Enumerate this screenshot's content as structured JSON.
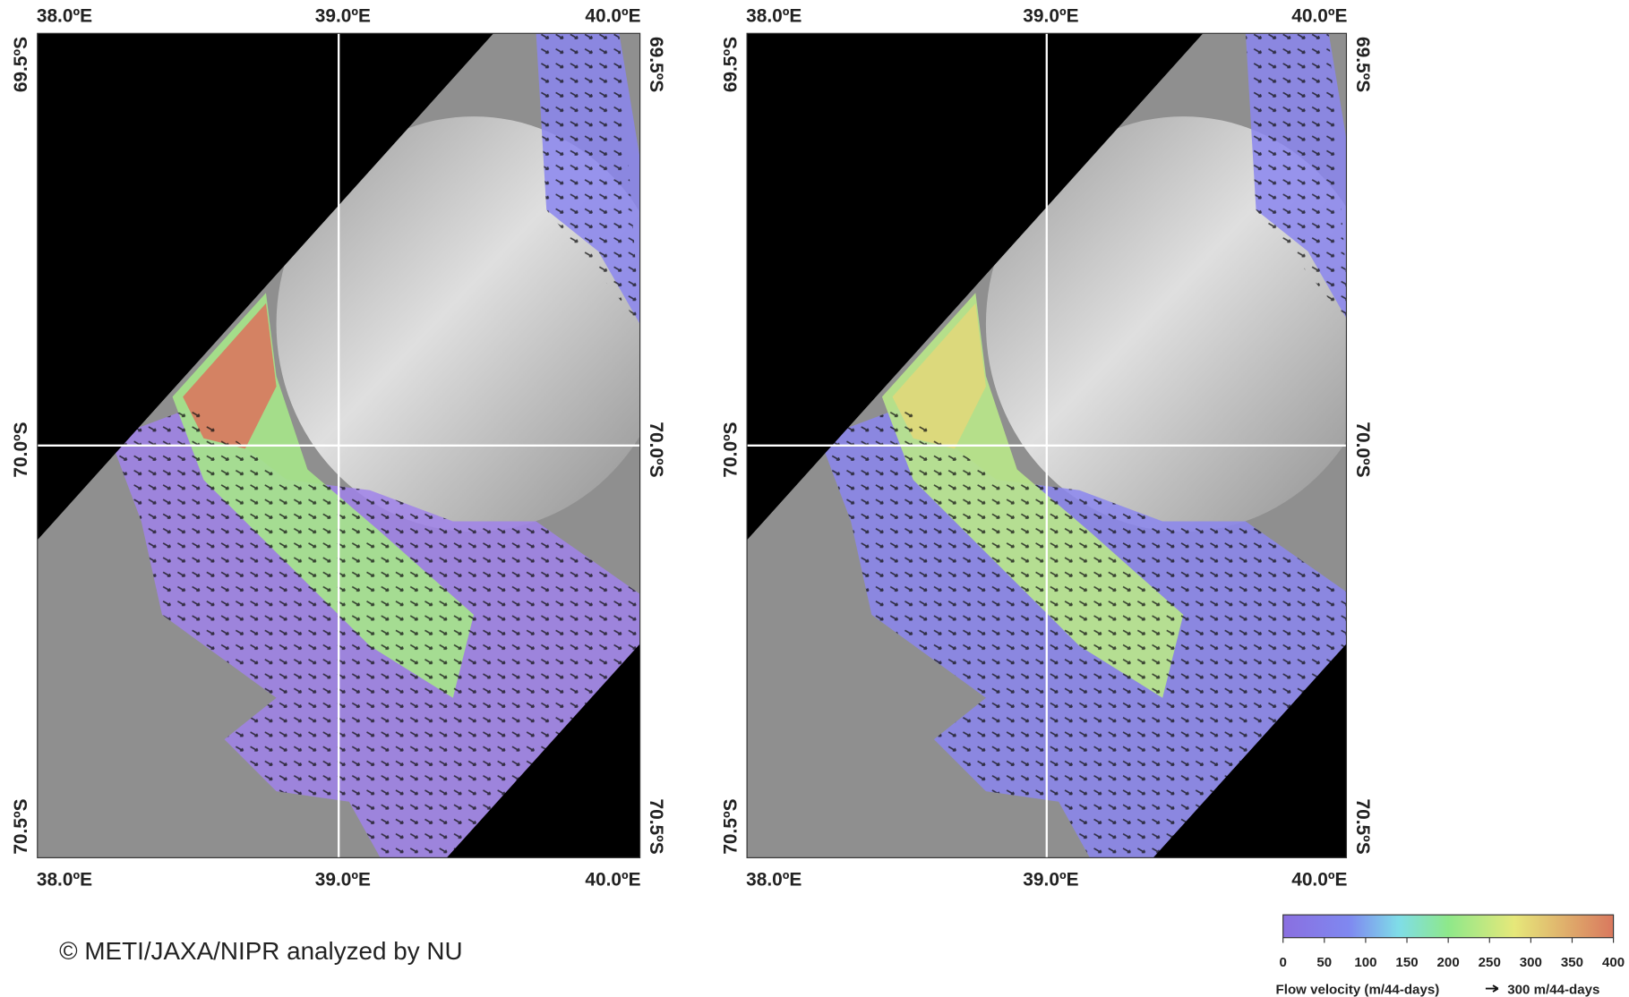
{
  "maps": {
    "lon_labels": [
      "38.0ºE",
      "39.0ºE",
      "40.0ºE"
    ],
    "lat_labels": [
      "69.5ºS",
      "70.0ºS",
      "70.5ºS"
    ]
  },
  "credit": "© METI/JAXA/NIPR analyzed by NU",
  "colorbar": {
    "range": [
      0,
      400
    ],
    "ticks": [
      0,
      50,
      100,
      150,
      200,
      250,
      300,
      350,
      400
    ],
    "label": "Flow velocity (m/44-days)",
    "arrow_label": "300 m/44-days"
  }
}
